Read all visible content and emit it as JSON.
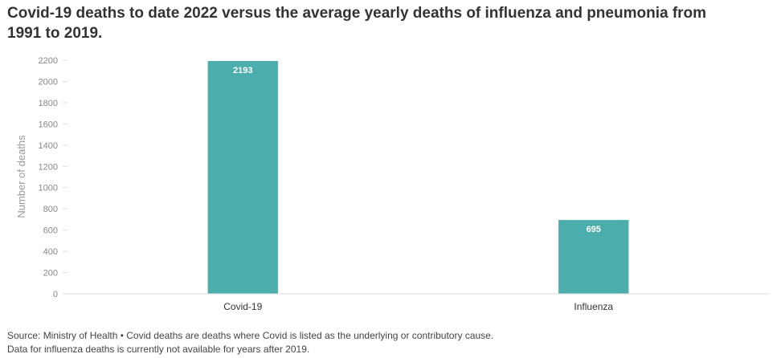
{
  "chart_data": {
    "type": "bar",
    "title_line1": "Covid-19 deaths to date 2022 versus the average yearly deaths of influenza and pneumonia from",
    "title_line2": "1991 to 2019.",
    "categories": [
      "Covid-19",
      "Influenza"
    ],
    "values": [
      2193,
      695
    ],
    "data_labels": [
      "2193",
      "695"
    ],
    "xlabel": "",
    "ylabel": "Number of deaths",
    "ylim": [
      0,
      2200
    ],
    "yticks": [
      0,
      200,
      400,
      600,
      800,
      1000,
      1200,
      1400,
      1600,
      1800,
      2000,
      2200
    ],
    "grid": false,
    "bar_color": "#4cadad"
  },
  "footer": {
    "source_line": "Source: Ministry of Health • Covid deaths are deaths where Covid is listed as the underlying or contributory cause.",
    "note_line": "Data for influenza deaths is currently not available for years after 2019."
  },
  "colors": {
    "title": "#333333",
    "axis": "#dddddd",
    "tick_text": "#888888",
    "category_text": "#333333",
    "label_text": "#ffffff"
  }
}
